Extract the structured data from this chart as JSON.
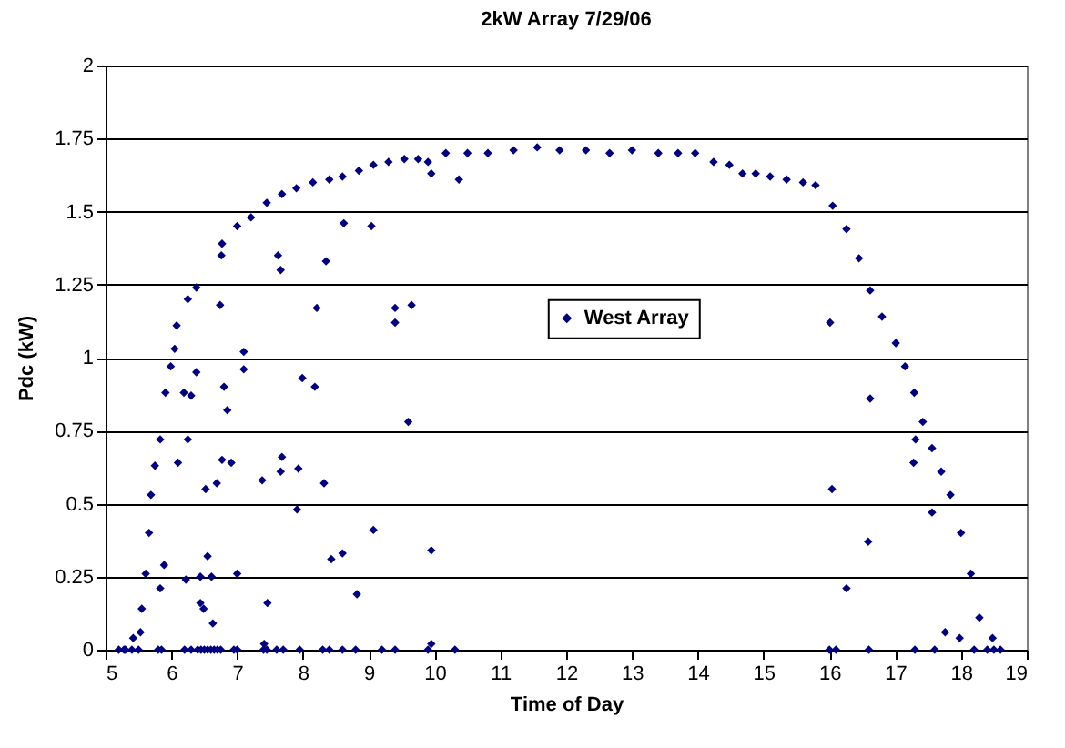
{
  "chart_data": {
    "type": "scatter",
    "title": "2kW Array 7/29/06",
    "xlabel": "Time of Day",
    "ylabel": "Pdc (kW)",
    "xlim": [
      5,
      19
    ],
    "xticks": [
      5,
      6,
      7,
      8,
      9,
      10,
      11,
      12,
      13,
      14,
      15,
      16,
      17,
      18,
      19
    ],
    "ylim": [
      0,
      2
    ],
    "yticks": [
      0,
      0.25,
      0.5,
      0.75,
      1,
      1.25,
      1.5,
      1.75,
      2
    ],
    "grid": "y",
    "legend": "center",
    "marker": "diamond",
    "series": [
      {
        "name": "West Array",
        "color": "#000080",
        "x": [
          5.28,
          5.42,
          5.53,
          5.55,
          5.61,
          5.66,
          5.69,
          5.75,
          5.83,
          5.91,
          5.99,
          6.05,
          6.08,
          6.25,
          6.38,
          6.77,
          7.0,
          7.21,
          7.45,
          7.68,
          7.9,
          8.15,
          8.4,
          8.6,
          8.85,
          9.07,
          9.3,
          9.54,
          9.75,
          9.9,
          10.17,
          10.5,
          10.81,
          11.2,
          11.56,
          11.9,
          12.3,
          12.66,
          13.0,
          13.4,
          13.7,
          13.96,
          14.24,
          14.48,
          14.68,
          14.88,
          15.1,
          15.35,
          15.6,
          15.79,
          16.05,
          16.26,
          16.45,
          16.62,
          16.8,
          17.01,
          17.15,
          17.29,
          17.42,
          17.56,
          17.7,
          17.84,
          18.0,
          18.15,
          18.28,
          18.48,
          6.76,
          7.62,
          7.66,
          8.35,
          8.62,
          9.04,
          9.95,
          10.37,
          6.74,
          8.21,
          9.4,
          9.65,
          9.4,
          7.1,
          7.1,
          6.38,
          6.19,
          6.3,
          6.8,
          6.85,
          7.99,
          8.18,
          9.6,
          6.25,
          6.1,
          6.77,
          6.91,
          7.68,
          7.66,
          7.93,
          6.52,
          6.69,
          7.38,
          8.32,
          7.91,
          9.07,
          5.89,
          6.55,
          9.95,
          8.43,
          8.6,
          6.22,
          6.44,
          6.61,
          7.0,
          5.83,
          6.44,
          6.49,
          7.46,
          8.82,
          6.63,
          7.41,
          9.95,
          16.01,
          16.62,
          17.31,
          17.28,
          16.04,
          17.56,
          16.59,
          16.26,
          17.76,
          17.98,
          5.2,
          5.3,
          5.4,
          5.5,
          5.8,
          5.85,
          6.2,
          6.3,
          6.4,
          6.45,
          6.5,
          6.55,
          6.6,
          6.65,
          6.7,
          6.75,
          6.95,
          7.0,
          7.4,
          7.45,
          7.6,
          7.7,
          7.95,
          8.3,
          8.4,
          8.6,
          8.8,
          9.2,
          9.4,
          9.9,
          10.31,
          16.0,
          16.1,
          16.6,
          17.3,
          17.6,
          18.2,
          18.4,
          18.5,
          18.6
        ],
        "values": [
          0,
          0.04,
          0.06,
          0.14,
          0.26,
          0.4,
          0.53,
          0.63,
          0.72,
          0.88,
          0.97,
          1.03,
          1.11,
          1.2,
          1.24,
          1.39,
          1.45,
          1.48,
          1.53,
          1.56,
          1.58,
          1.6,
          1.61,
          1.62,
          1.64,
          1.66,
          1.67,
          1.68,
          1.68,
          1.67,
          1.7,
          1.7,
          1.7,
          1.71,
          1.72,
          1.71,
          1.71,
          1.7,
          1.71,
          1.7,
          1.7,
          1.7,
          1.67,
          1.66,
          1.63,
          1.63,
          1.62,
          1.61,
          1.6,
          1.59,
          1.52,
          1.44,
          1.34,
          1.23,
          1.14,
          1.05,
          0.97,
          0.88,
          0.78,
          0.69,
          0.61,
          0.53,
          0.4,
          0.26,
          0.11,
          0.04,
          1.35,
          1.35,
          1.3,
          1.33,
          1.46,
          1.45,
          1.63,
          1.61,
          1.18,
          1.17,
          1.17,
          1.18,
          1.12,
          1.02,
          0.96,
          0.95,
          0.88,
          0.87,
          0.9,
          0.82,
          0.93,
          0.9,
          0.78,
          0.72,
          0.64,
          0.65,
          0.64,
          0.66,
          0.61,
          0.62,
          0.55,
          0.57,
          0.58,
          0.57,
          0.48,
          0.41,
          0.29,
          0.32,
          0.34,
          0.31,
          0.33,
          0.24,
          0.25,
          0.25,
          0.26,
          0.21,
          0.16,
          0.14,
          0.16,
          0.19,
          0.09,
          0.02,
          0.02,
          1.12,
          0.86,
          0.72,
          0.64,
          0.55,
          0.47,
          0.37,
          0.21,
          0.06,
          0.04,
          0,
          0,
          0,
          0,
          0,
          0,
          0,
          0,
          0,
          0,
          0,
          0,
          0,
          0,
          0,
          0,
          0,
          0,
          0,
          0,
          0,
          0,
          0,
          0,
          0,
          0,
          0,
          0,
          0,
          0,
          0,
          0,
          0,
          0,
          0,
          0,
          0,
          0,
          0,
          0
        ]
      }
    ]
  }
}
